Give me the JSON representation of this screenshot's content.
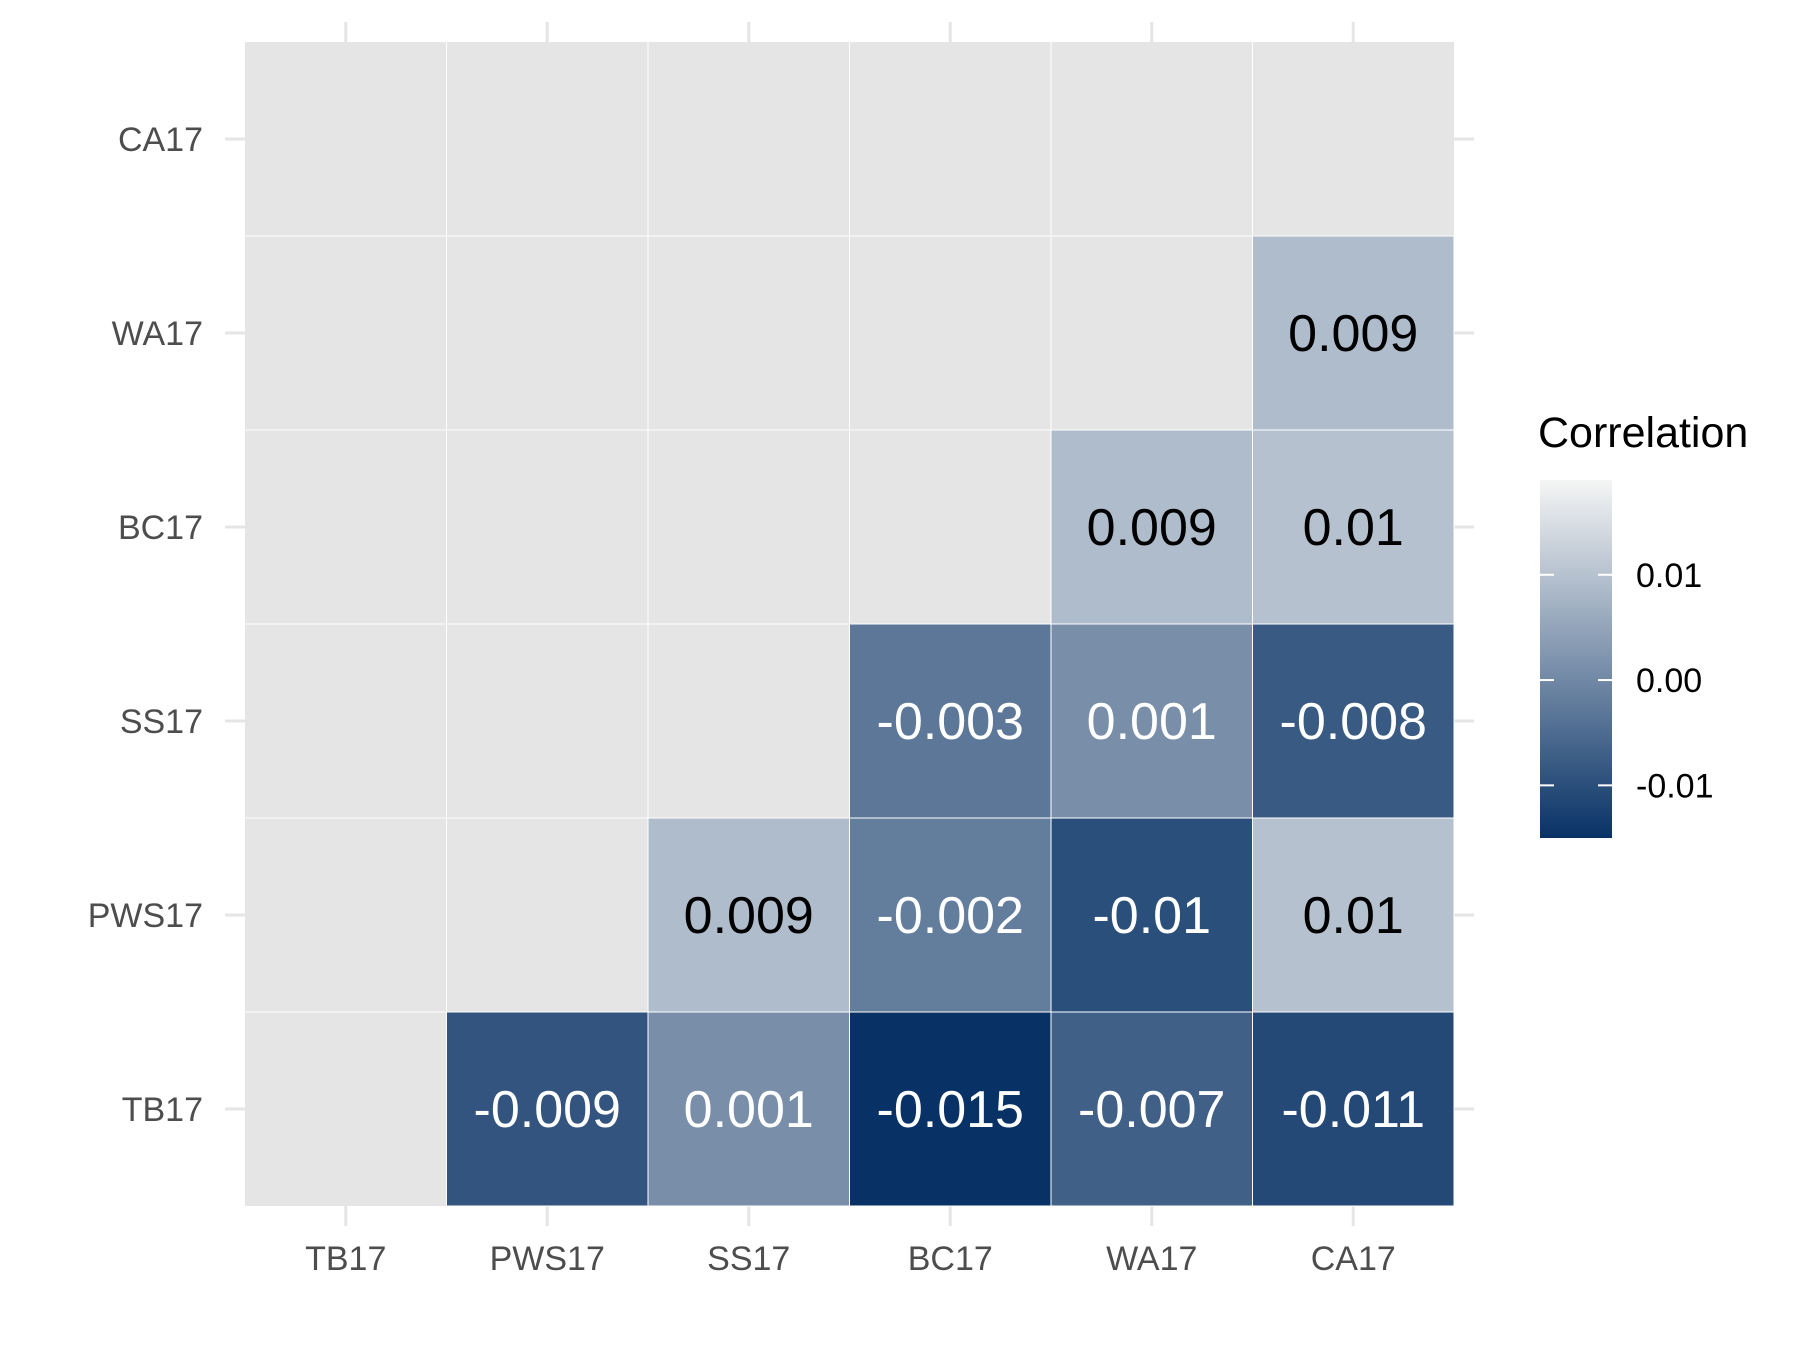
{
  "chart_data": {
    "type": "heatmap",
    "title": "",
    "xlabel": "",
    "ylabel": "",
    "x_categories": [
      "TB17",
      "PWS17",
      "SS17",
      "BC17",
      "WA17",
      "CA17"
    ],
    "y_categories": [
      "TB17",
      "PWS17",
      "SS17",
      "BC17",
      "WA17",
      "CA17"
    ],
    "cells": [
      {
        "x": "PWS17",
        "y": "TB17",
        "value": -0.009,
        "label": "-0.009"
      },
      {
        "x": "SS17",
        "y": "TB17",
        "value": 0.001,
        "label": "0.001"
      },
      {
        "x": "BC17",
        "y": "TB17",
        "value": -0.015,
        "label": "-0.015"
      },
      {
        "x": "WA17",
        "y": "TB17",
        "value": -0.007,
        "label": "-0.007"
      },
      {
        "x": "CA17",
        "y": "TB17",
        "value": -0.011,
        "label": "-0.011"
      },
      {
        "x": "SS17",
        "y": "PWS17",
        "value": 0.009,
        "label": "0.009"
      },
      {
        "x": "BC17",
        "y": "PWS17",
        "value": -0.002,
        "label": "-0.002"
      },
      {
        "x": "WA17",
        "y": "PWS17",
        "value": -0.01,
        "label": "-0.01"
      },
      {
        "x": "CA17",
        "y": "PWS17",
        "value": 0.01,
        "label": "0.01"
      },
      {
        "x": "BC17",
        "y": "SS17",
        "value": -0.003,
        "label": "-0.003"
      },
      {
        "x": "WA17",
        "y": "SS17",
        "value": 0.001,
        "label": "0.001"
      },
      {
        "x": "CA17",
        "y": "SS17",
        "value": -0.008,
        "label": "-0.008"
      },
      {
        "x": "WA17",
        "y": "BC17",
        "value": 0.009,
        "label": "0.009"
      },
      {
        "x": "CA17",
        "y": "BC17",
        "value": 0.01,
        "label": "0.01"
      },
      {
        "x": "CA17",
        "y": "WA17",
        "value": 0.009,
        "label": "0.009"
      }
    ],
    "legend": {
      "title": "Correlation",
      "placement": "right",
      "range": [
        -0.015,
        0.019
      ],
      "ticks": [
        {
          "value": 0.01,
          "label": "0.01"
        },
        {
          "value": 0.0,
          "label": "0.00"
        },
        {
          "value": -0.01,
          "label": "-0.01"
        }
      ]
    },
    "colors": {
      "panel_background": "#e5e5e5",
      "grid": "#ffffff",
      "low": "#083266",
      "high": "#f5f5f5",
      "dark_label": "#000000",
      "light_label": "#ffffff"
    },
    "grid": true
  }
}
